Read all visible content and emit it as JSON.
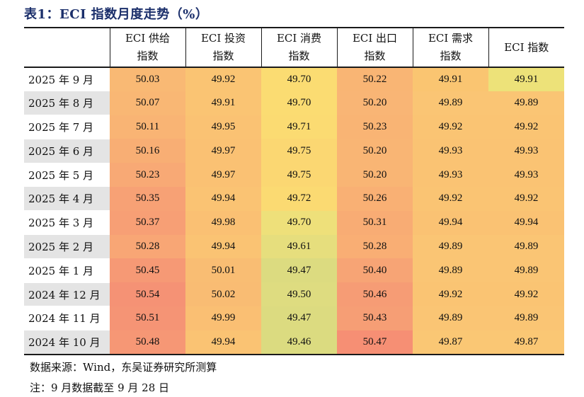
{
  "title": "表1：ECI 指数月度走势（%）",
  "headers": [
    "",
    "ECI 供给\n指数",
    "ECI 投资\n指数",
    "ECI 消费\n指数",
    "ECI 出口\n指数",
    "ECI 需求\n指数",
    "ECI 指数"
  ],
  "rows": [
    {
      "date": "2025 年 9 月",
      "values": [
        "50.03",
        "49.92",
        "49.70",
        "50.22",
        "49.91",
        "49.91"
      ],
      "colors": [
        "#f9b974",
        "#fac473",
        "#fbdc72",
        "#f9b574",
        "#fac571",
        "#ede279"
      ]
    },
    {
      "date": "2025 年 8 月",
      "values": [
        "50.07",
        "49.91",
        "49.70",
        "50.20",
        "49.89",
        "49.89"
      ],
      "colors": [
        "#f9b774",
        "#fac473",
        "#fbdc72",
        "#f9b575",
        "#fac574",
        "#fac574"
      ]
    },
    {
      "date": "2025 年 7 月",
      "values": [
        "50.11",
        "49.95",
        "49.71",
        "50.23",
        "49.92",
        "49.92"
      ],
      "colors": [
        "#f9b474",
        "#fac273",
        "#fbdb72",
        "#f9b474",
        "#fac473",
        "#fac473"
      ]
    },
    {
      "date": "2025 年 6 月",
      "values": [
        "50.16",
        "49.97",
        "49.75",
        "50.20",
        "49.93",
        "49.93"
      ],
      "colors": [
        "#f8ae74",
        "#fac173",
        "#fbd772",
        "#f9b574",
        "#fac373",
        "#fac373"
      ]
    },
    {
      "date": "2025 年 5 月",
      "values": [
        "50.23",
        "49.97",
        "49.75",
        "50.20",
        "49.93",
        "49.93"
      ],
      "colors": [
        "#f8a975",
        "#fac173",
        "#fbd772",
        "#f9b574",
        "#fac373",
        "#fac373"
      ]
    },
    {
      "date": "2025 年 4 月",
      "values": [
        "50.35",
        "49.94",
        "49.72",
        "50.26",
        "49.92",
        "49.92"
      ],
      "colors": [
        "#f7a175",
        "#fac373",
        "#fbda72",
        "#f9b074",
        "#fac473",
        "#fac473"
      ]
    },
    {
      "date": "2025 年 3 月",
      "values": [
        "50.37",
        "49.98",
        "49.70",
        "50.31",
        "49.94",
        "49.94"
      ],
      "colors": [
        "#f79f75",
        "#fac073",
        "#eee07a",
        "#f8ac74",
        "#fac273",
        "#fac273"
      ]
    },
    {
      "date": "2025 年 2 月",
      "values": [
        "50.28",
        "49.94",
        "49.61",
        "50.28",
        "49.89",
        "49.89"
      ],
      "colors": [
        "#f8a675",
        "#fac373",
        "#e6de7d",
        "#f9ae74",
        "#fac574",
        "#fac574"
      ]
    },
    {
      "date": "2025 年 1 月",
      "values": [
        "50.45",
        "50.01",
        "49.47",
        "50.40",
        "49.89",
        "49.89"
      ],
      "colors": [
        "#f69975",
        "#f9bd73",
        "#dcdb80",
        "#f7a475",
        "#fac574",
        "#fac574"
      ]
    },
    {
      "date": "2024 年 12 月",
      "values": [
        "50.54",
        "50.02",
        "49.50",
        "50.46",
        "49.92",
        "49.92"
      ],
      "colors": [
        "#f59275",
        "#f9bc73",
        "#dedc80",
        "#f69c75",
        "#fac473",
        "#fac473"
      ]
    },
    {
      "date": "2024 年 11 月",
      "values": [
        "50.51",
        "49.99",
        "49.47",
        "50.43",
        "49.89",
        "49.89"
      ],
      "colors": [
        "#f59475",
        "#fabf73",
        "#dcdb80",
        "#f69e75",
        "#fac574",
        "#fac574"
      ]
    },
    {
      "date": "2024 年 10 月",
      "values": [
        "50.48",
        "49.94",
        "49.46",
        "50.47",
        "49.87",
        "49.87"
      ],
      "colors": [
        "#f69775",
        "#fac373",
        "#dbdb80",
        "#f68f74",
        "#fac774",
        "#fac774"
      ]
    }
  ],
  "footer": {
    "source": "数据来源：Wind，东吴证券研究所测算",
    "note": "注：9 月数据截至 9 月 28 日"
  }
}
